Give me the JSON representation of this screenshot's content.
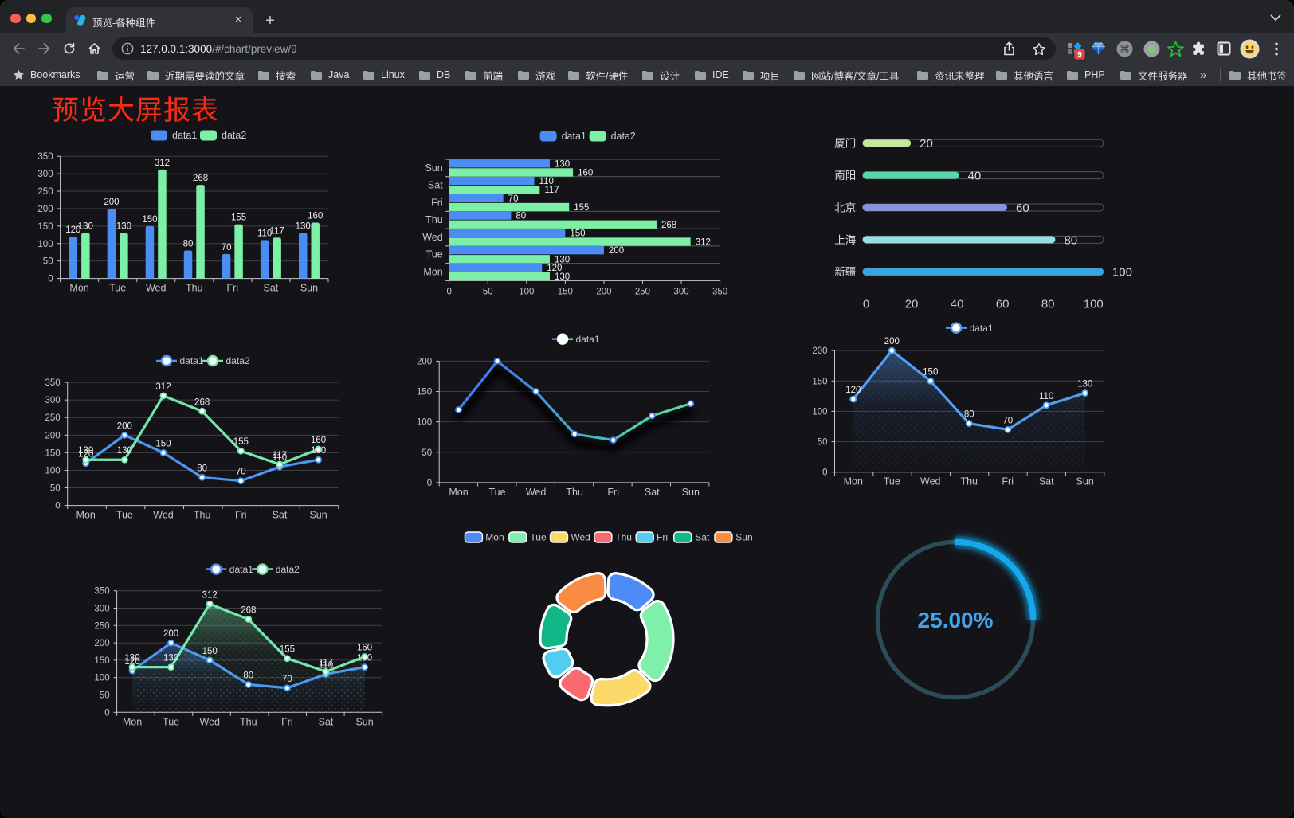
{
  "browser": {
    "tab": {
      "title": "预览-各种组件",
      "close_label": "×",
      "new_tab_label": "+"
    },
    "url": {
      "host": "127.0.0.1:3000",
      "path": "/#/chart/preview/9"
    },
    "bookmarks_root_label": "Bookmarks",
    "bookmarks": [
      "运营",
      "近期需要读的文章",
      "搜索",
      "Java",
      "Linux",
      "DB",
      "前端",
      "游戏",
      "软件/硬件",
      "设计",
      "IDE",
      "项目",
      "网站/博客/文章/工具",
      "资讯未整理",
      "其他语言",
      "PHP",
      "文件服务器"
    ],
    "bookmarks_overflow_label": "»",
    "other_bookmarks_label": "其他书签",
    "extension_badge_count": "9"
  },
  "page": {
    "title": "预览大屏报表",
    "title_color": "#fa2b15",
    "background": "#141318"
  },
  "chart_data": [
    {
      "id": "grouped-bar",
      "type": "bar",
      "categories": [
        "Mon",
        "Tue",
        "Wed",
        "Thu",
        "Fri",
        "Sat",
        "Sun"
      ],
      "series": [
        {
          "name": "data1",
          "color": "#4b8df2",
          "values": [
            120,
            200,
            150,
            80,
            70,
            110,
            130
          ]
        },
        {
          "name": "data2",
          "color": "#7df0a7",
          "values": [
            130,
            130,
            312,
            268,
            155,
            117,
            160
          ]
        }
      ],
      "ylim": [
        0,
        350
      ],
      "ytick": 50,
      "grid": true,
      "legend_position": "top"
    },
    {
      "id": "grouped-horizontal-bar",
      "type": "bar-horizontal",
      "categories": [
        "Mon",
        "Tue",
        "Wed",
        "Thu",
        "Fri",
        "Sat",
        "Sun"
      ],
      "series": [
        {
          "name": "data1",
          "color": "#4b8df2",
          "values": [
            120,
            200,
            150,
            80,
            70,
            110,
            130
          ]
        },
        {
          "name": "data2",
          "color": "#7df0a7",
          "values": [
            130,
            130,
            312,
            268,
            155,
            117,
            160
          ]
        }
      ],
      "xlim": [
        0,
        350
      ],
      "xtick": 50,
      "grid": true,
      "legend_position": "top"
    },
    {
      "id": "city-progress-bars",
      "type": "progress-bar",
      "categories": [
        "厦门",
        "南阳",
        "北京",
        "上海",
        "新疆"
      ],
      "values": [
        20,
        40,
        60,
        80,
        100
      ],
      "colors": [
        "#c5e8a0",
        "#57d8a9",
        "#8a91d6",
        "#96dfe2",
        "#3aa5de"
      ],
      "xlim": [
        0,
        100
      ],
      "xticks": [
        0,
        20,
        40,
        60,
        80,
        100
      ]
    },
    {
      "id": "two-series-line",
      "type": "line",
      "categories": [
        "Mon",
        "Tue",
        "Wed",
        "Thu",
        "Fri",
        "Sat",
        "Sun"
      ],
      "series": [
        {
          "name": "data1",
          "color": "#4c96f2",
          "values": [
            120,
            200,
            150,
            80,
            70,
            110,
            130
          ]
        },
        {
          "name": "data2",
          "color": "#74e8a8",
          "values": [
            130,
            130,
            312,
            268,
            155,
            117,
            160
          ]
        }
      ],
      "ylim": [
        0,
        350
      ],
      "ytick": 50,
      "grid": true,
      "show_labels": true,
      "legend_position": "top"
    },
    {
      "id": "gradient-line",
      "type": "line",
      "categories": [
        "Mon",
        "Tue",
        "Wed",
        "Thu",
        "Fri",
        "Sat",
        "Sun"
      ],
      "series": [
        {
          "name": "data1",
          "color": "#4c96f2",
          "gradient": [
            "#3d7ded",
            "#52d9a2"
          ],
          "values": [
            120,
            200,
            150,
            80,
            70,
            110,
            130
          ],
          "shadow": true
        }
      ],
      "ylim": [
        0,
        200
      ],
      "ytick": 50,
      "grid": true,
      "show_labels": false,
      "legend_position": "top"
    },
    {
      "id": "area-line",
      "type": "line",
      "categories": [
        "Mon",
        "Tue",
        "Wed",
        "Thu",
        "Fri",
        "Sat",
        "Sun"
      ],
      "series": [
        {
          "name": "data1",
          "color": "#539ef4",
          "values": [
            120,
            200,
            150,
            80,
            70,
            110,
            130
          ],
          "area": true
        }
      ],
      "ylim": [
        0,
        200
      ],
      "ytick": 50,
      "grid": true,
      "show_labels": true,
      "legend_position": "top"
    },
    {
      "id": "two-series-area-line",
      "type": "line",
      "categories": [
        "Mon",
        "Tue",
        "Wed",
        "Thu",
        "Fri",
        "Sat",
        "Sun"
      ],
      "series": [
        {
          "name": "data1",
          "color": "#4c96f2",
          "values": [
            120,
            200,
            150,
            80,
            70,
            110,
            130
          ],
          "area": true
        },
        {
          "name": "data2",
          "color": "#74e8a8",
          "values": [
            130,
            130,
            312,
            268,
            155,
            117,
            160
          ],
          "area": true
        }
      ],
      "ylim": [
        0,
        350
      ],
      "ytick": 50,
      "grid": true,
      "show_labels": true,
      "legend_position": "top"
    },
    {
      "id": "weekday-donut",
      "type": "pie",
      "categories": [
        "Mon",
        "Tue",
        "Wed",
        "Thu",
        "Fri",
        "Sat",
        "Sun"
      ],
      "values": [
        120,
        200,
        150,
        80,
        70,
        110,
        130
      ],
      "colors": [
        "#4e8bf7",
        "#7ef0ac",
        "#fad969",
        "#f96a70",
        "#52cdf2",
        "#10b888",
        "#f98b42"
      ],
      "legend_position": "top"
    },
    {
      "id": "percent-gauge",
      "type": "gauge",
      "value": 25,
      "max": 100,
      "label": "25.00%",
      "arc_color": "#12a8ec",
      "track_color": "#2a4d58",
      "text_color": "#41a3ea"
    }
  ]
}
